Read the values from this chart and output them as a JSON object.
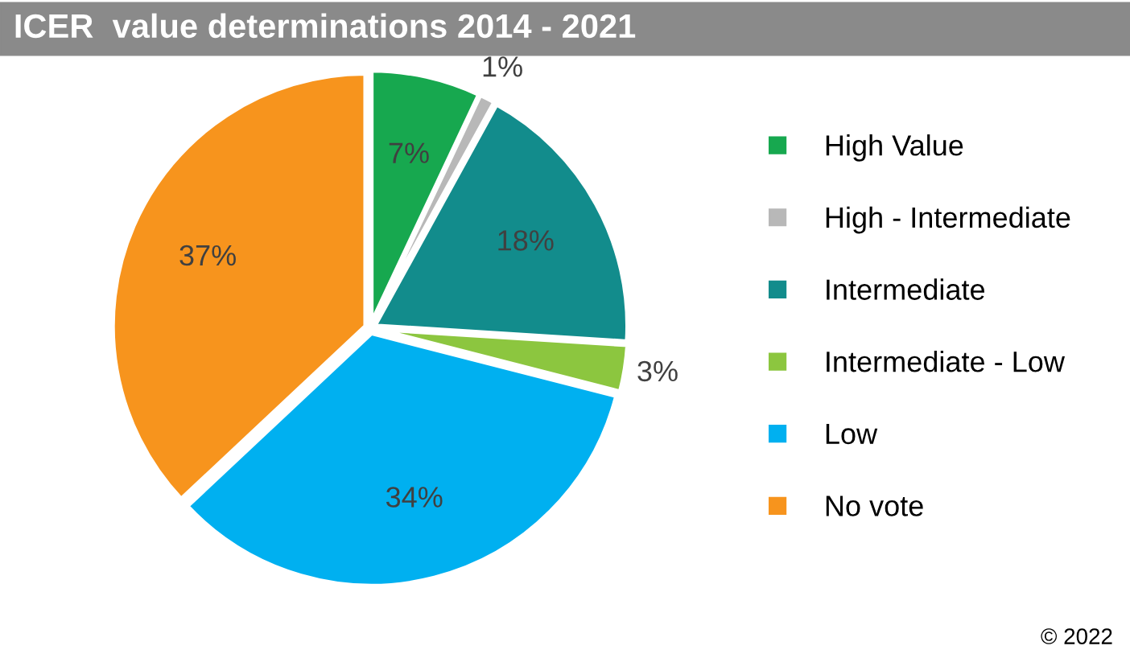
{
  "chart_data": {
    "type": "pie",
    "title": "ICER  value determinations 2014 - 2021",
    "categories": [
      "High Value",
      "High - Intermediate",
      "Intermediate",
      "Intermediate - Low",
      "Low",
      "No vote"
    ],
    "values": [
      7,
      1,
      18,
      3,
      34,
      37
    ],
    "colors": [
      "#17a84f",
      "#b8b8b8",
      "#128c8c",
      "#8cc63f",
      "#00b0f0",
      "#f7941d"
    ],
    "value_labels": [
      "7%",
      "1%",
      "18%",
      "3%",
      "34%",
      "37%"
    ],
    "legend": "right",
    "annotations": [
      "© 2022"
    ]
  }
}
